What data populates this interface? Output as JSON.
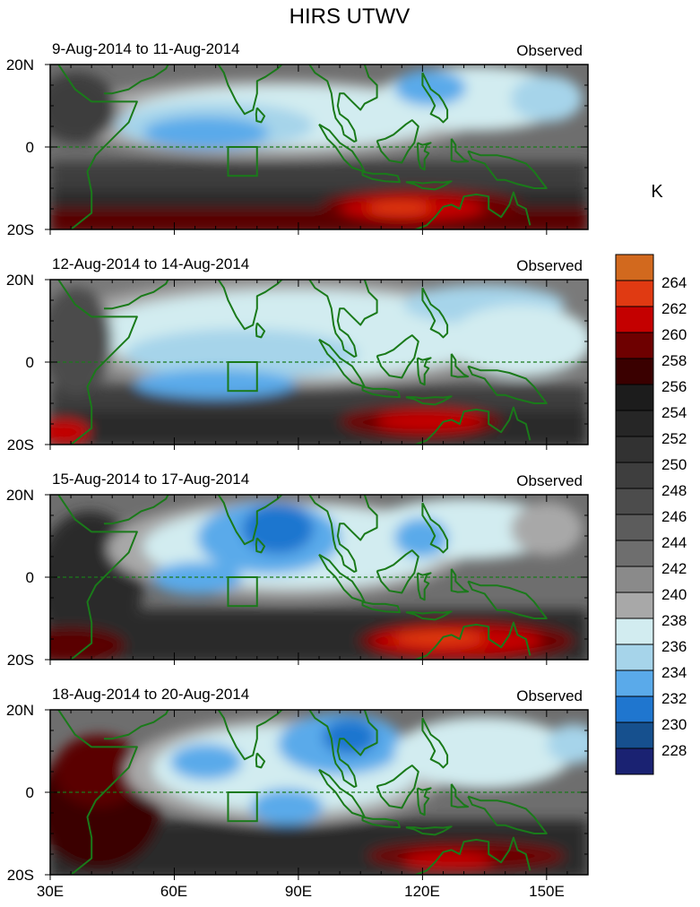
{
  "figure": {
    "title": "HIRS UTWV",
    "unit_label": "K",
    "x_ticks": [
      "30E",
      "60E",
      "90E",
      "120E",
      "150E"
    ],
    "x_tick_values": [
      30,
      60,
      90,
      120,
      150
    ],
    "y_ticks": [
      "20N",
      "0",
      "20S"
    ],
    "y_tick_values": [
      20,
      0,
      -20
    ],
    "lon_range": [
      30,
      160
    ],
    "lat_range": [
      -20,
      20
    ]
  },
  "panels": [
    {
      "date_range": "9-Aug-2014 to 11-Aug-2014",
      "label": "Observed"
    },
    {
      "date_range": "12-Aug-2014 to 14-Aug-2014",
      "label": "Observed"
    },
    {
      "date_range": "15-Aug-2014 to 17-Aug-2014",
      "label": "Observed"
    },
    {
      "date_range": "18-Aug-2014 to 20-Aug-2014",
      "label": "Observed"
    }
  ],
  "colorbar": {
    "labels": [
      "264",
      "262",
      "260",
      "258",
      "256",
      "254",
      "252",
      "250",
      "248",
      "246",
      "244",
      "242",
      "240",
      "238",
      "236",
      "234",
      "232",
      "230",
      "228"
    ],
    "colors": [
      "#d2691e",
      "#e03a12",
      "#c40000",
      "#6e0000",
      "#3a0000",
      "#1c1c1c",
      "#262626",
      "#323232",
      "#3e3e3e",
      "#4c4c4c",
      "#5c5c5c",
      "#6e6e6e",
      "#8a8a8a",
      "#a8a8a8",
      "#d2ecf0",
      "#a6d4ea",
      "#5aaaea",
      "#1f76cf",
      "#16508e",
      "#1a2272"
    ]
  },
  "box_region": {
    "lon_min": 73,
    "lon_max": 80,
    "lat_min": -7,
    "lat_max": 0
  }
}
